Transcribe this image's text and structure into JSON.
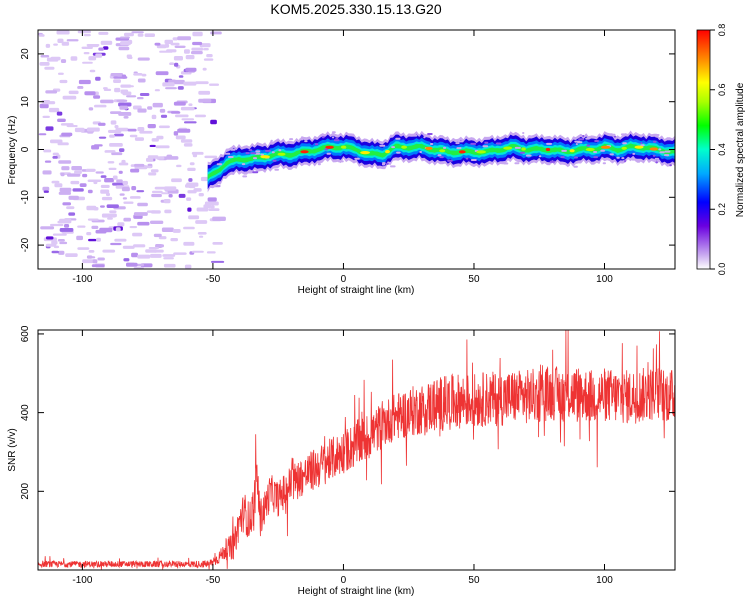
{
  "title": "KOM5.2025.330.15.13.G20",
  "chart_data": [
    {
      "type": "heatmap",
      "title": "KOM5.2025.330.15.13.G20",
      "xlabel": "Height of straight line (km)",
      "ylabel": "Frequency (Hz)",
      "xlim": [
        -117,
        127
      ],
      "ylim": [
        -25,
        25
      ],
      "xticks": [
        -100,
        -50,
        0,
        50,
        100
      ],
      "xtick_labels": [
        "-100",
        "-50",
        "0",
        "50",
        "100"
      ],
      "yticks": [
        20,
        10,
        0,
        -10,
        -20
      ],
      "ytick_labels": [
        "20",
        "10",
        "0",
        "-10",
        "-20"
      ],
      "noise_region_x": [
        -117,
        -50
      ],
      "signal_trace": {
        "x": [
          -52,
          -45,
          -40,
          -35,
          -30,
          -25,
          -20,
          -15,
          -10,
          -5,
          0,
          5,
          10,
          15,
          20,
          25,
          30,
          35,
          40,
          45,
          50,
          55,
          60,
          65,
          70,
          75,
          80,
          85,
          90,
          95,
          100,
          105,
          110,
          115,
          120,
          127
        ],
        "y": [
          -6,
          -3,
          -2,
          -2,
          -1.5,
          -1,
          -1,
          -0.5,
          0,
          0.5,
          0.5,
          0,
          -1,
          -1,
          0.5,
          0.5,
          0.5,
          0,
          -0.5,
          -0.5,
          -0.5,
          -0.5,
          0,
          0.5,
          0,
          0,
          0,
          -0.5,
          0,
          0,
          0.5,
          0,
          0.5,
          0.5,
          0,
          -0.5
        ]
      },
      "colorbar": {
        "label": "Normalized spectral amplitude",
        "range": [
          0,
          0.8
        ],
        "ticks": [
          0.0,
          0.2,
          0.4,
          0.6,
          0.8
        ],
        "tick_labels": [
          "0.0",
          "0.2",
          "0.4",
          "0.6",
          "0.8"
        ]
      }
    },
    {
      "type": "line",
      "xlabel": "Height of straight line (km)",
      "ylabel": "SNR (v/v)",
      "xlim": [
        -117,
        127
      ],
      "ylim": [
        0,
        610
      ],
      "xticks": [
        -100,
        -50,
        0,
        50,
        100
      ],
      "xtick_labels": [
        "-100",
        "-50",
        "0",
        "50",
        "100"
      ],
      "yticks": [
        600,
        400,
        200
      ],
      "ytick_labels": [
        "600",
        "400",
        "200"
      ],
      "series": [
        {
          "name": "SNR",
          "color": "#ee3333",
          "x": [
            -117,
            -60,
            -52,
            -50,
            -48,
            -46,
            -44,
            -42,
            -40,
            -38,
            -36,
            -34,
            -33,
            -32,
            -30,
            -28,
            -25,
            -20,
            -15,
            -10,
            -5,
            0,
            5,
            10,
            15,
            20,
            25,
            30,
            35,
            40,
            45,
            50,
            55,
            60,
            65,
            70,
            75,
            80,
            85,
            90,
            95,
            100,
            105,
            110,
            115,
            120,
            127
          ],
          "y": [
            15,
            15,
            15,
            20,
            30,
            45,
            55,
            60,
            120,
            150,
            120,
            180,
            240,
            130,
            160,
            200,
            180,
            220,
            240,
            260,
            280,
            300,
            320,
            340,
            370,
            390,
            400,
            410,
            420,
            425,
            430,
            430,
            435,
            435,
            440,
            440,
            445,
            450,
            445,
            450,
            440,
            445,
            440,
            440,
            445,
            450,
            440
          ],
          "noise_amplitude": [
            8,
            8,
            10,
            12,
            15,
            20,
            30,
            35,
            45,
            50,
            50,
            55,
            60,
            50,
            45,
            45,
            45,
            50,
            50,
            55,
            55,
            55,
            60,
            60,
            60,
            60,
            65,
            65,
            70,
            70,
            70,
            70,
            70,
            70,
            70,
            70,
            70,
            70,
            70,
            70,
            70,
            70,
            70,
            70,
            70,
            70,
            70
          ]
        }
      ]
    }
  ]
}
